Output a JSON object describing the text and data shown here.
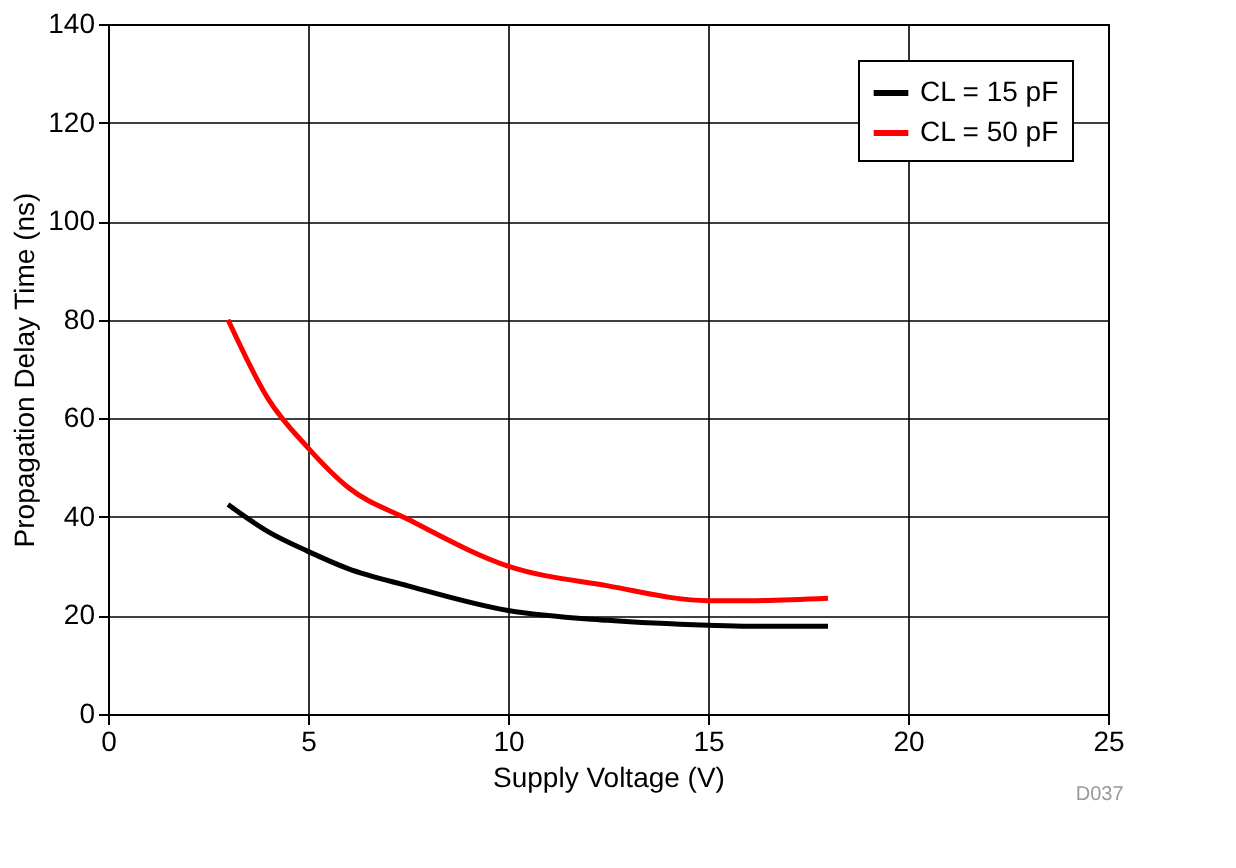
{
  "chart_data": {
    "type": "line",
    "xlabel": "Supply Voltage (V)",
    "ylabel": "Propagation Delay Time (ns)",
    "x": [
      3,
      4,
      5,
      6,
      7.5,
      10,
      12.5,
      15,
      16,
      18
    ],
    "series": [
      {
        "name": "CL = 15 pF",
        "color": "#000000",
        "values": [
          42.5,
          37,
          33,
          29.5,
          26,
          21,
          19,
          18,
          17.8,
          17.8
        ]
      },
      {
        "name": "CL = 50 pF",
        "color": "#ff0000",
        "values": [
          80,
          64,
          54,
          46,
          39.5,
          30,
          26,
          23,
          23,
          23.5
        ]
      }
    ],
    "xlim": [
      0,
      25
    ],
    "ylim": [
      0,
      140
    ],
    "xticks": [
      0,
      5,
      10,
      15,
      20,
      25
    ],
    "yticks": [
      0,
      20,
      40,
      60,
      80,
      100,
      120,
      140
    ],
    "grid": true,
    "legend": "top right",
    "annotations": [
      "D037"
    ]
  }
}
